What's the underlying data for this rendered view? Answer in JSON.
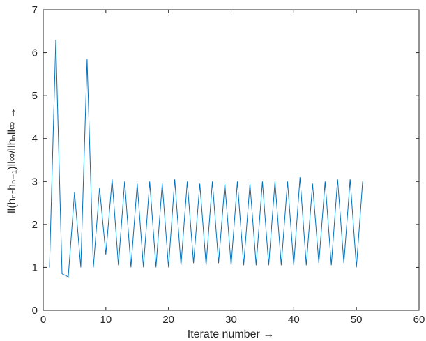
{
  "chart_data": {
    "type": "line",
    "title": "",
    "xlabel": "Iterate number →",
    "ylabel": "ll(hₙ-hₙ₋₁)ll∞/llhₙll∞ →",
    "xlim": [
      0,
      60
    ],
    "ylim": [
      0,
      7
    ],
    "xticks": [
      0,
      10,
      20,
      30,
      40,
      50,
      60
    ],
    "yticks": [
      0,
      1,
      2,
      3,
      4,
      5,
      6,
      7
    ],
    "grid": false,
    "series": [
      {
        "color": "#0072bd",
        "x": [
          1,
          2,
          3,
          4,
          5,
          6,
          7,
          8,
          9,
          10,
          11,
          12,
          13,
          14,
          15,
          16,
          17,
          18,
          19,
          20,
          21,
          22,
          23,
          24,
          25,
          26,
          27,
          28,
          29,
          30,
          31,
          32,
          33,
          34,
          35,
          36,
          37,
          38,
          39,
          40,
          41,
          42,
          43,
          44,
          45,
          46,
          47,
          48,
          49,
          50,
          51
        ],
        "y": [
          1.0,
          6.3,
          0.85,
          0.78,
          2.75,
          1.0,
          5.85,
          1.0,
          2.85,
          1.3,
          3.05,
          1.05,
          3.0,
          1.0,
          2.95,
          1.0,
          3.0,
          1.0,
          2.95,
          1.0,
          3.05,
          1.05,
          3.0,
          1.1,
          2.95,
          1.05,
          3.0,
          1.1,
          2.95,
          1.05,
          3.0,
          1.05,
          2.95,
          1.05,
          3.0,
          1.05,
          3.0,
          1.05,
          3.0,
          1.05,
          3.1,
          1.05,
          2.95,
          1.1,
          3.0,
          1.05,
          3.05,
          1.1,
          3.05,
          1.0,
          3.0
        ]
      }
    ]
  }
}
